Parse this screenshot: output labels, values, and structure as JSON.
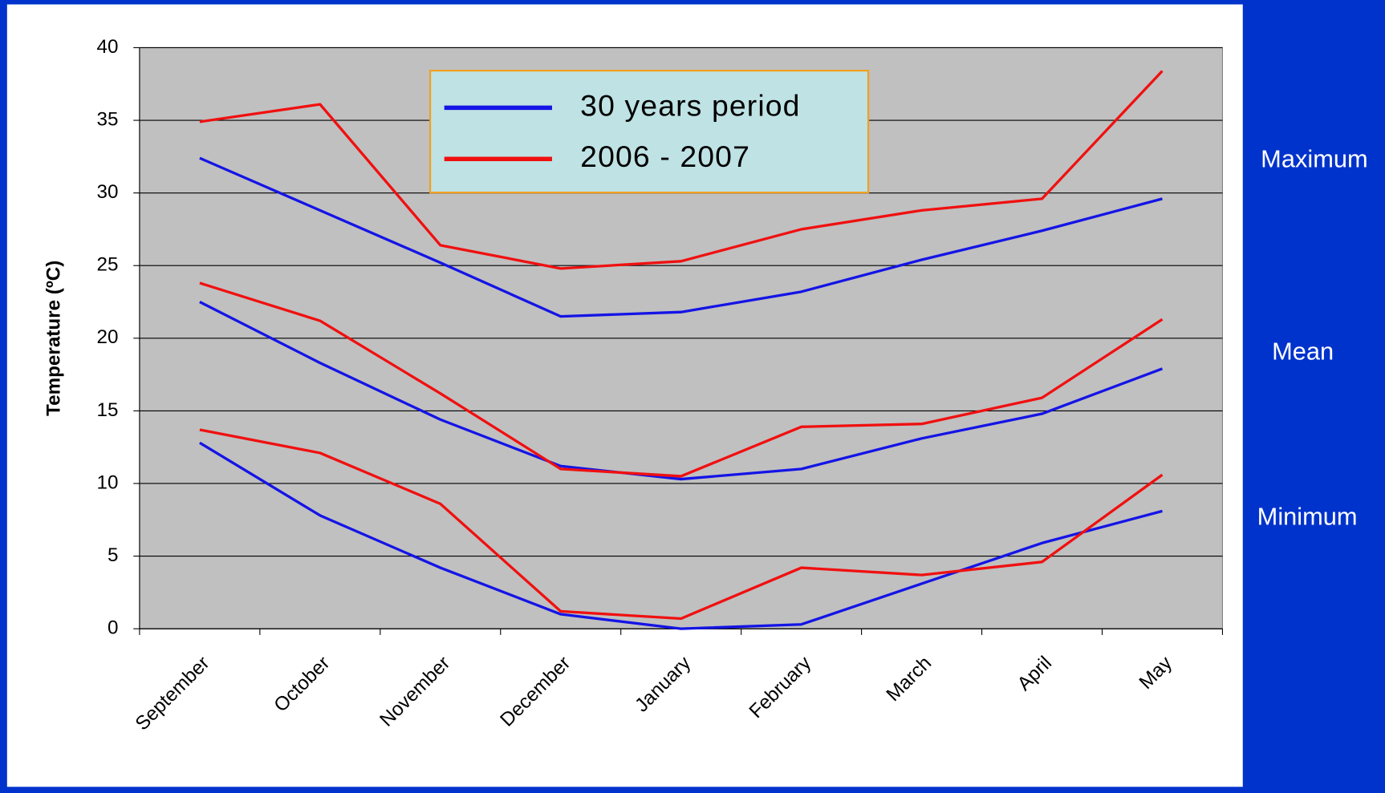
{
  "chart_data": {
    "type": "line",
    "y_axis_label": "Temperature (ºC)",
    "categories": [
      "September",
      "October",
      "November",
      "December",
      "January",
      "February",
      "March",
      "April",
      "May"
    ],
    "ylim": [
      0,
      40
    ],
    "yticks": [
      0,
      5,
      10,
      15,
      20,
      25,
      30,
      35,
      40
    ],
    "grid": true,
    "row_labels": [
      "Maximum",
      "Mean",
      "Minimum"
    ],
    "series": [
      {
        "name": "30 years period",
        "color": "#1414e6",
        "lines": [
          {
            "values": [
              32.4,
              28.8,
              25.2,
              21.5,
              21.8,
              23.2,
              25.4,
              27.4,
              29.6
            ]
          },
          {
            "values": [
              22.5,
              18.3,
              14.4,
              11.2,
              10.3,
              11.0,
              13.1,
              14.8,
              17.9
            ]
          },
          {
            "values": [
              12.8,
              7.8,
              4.2,
              1.0,
              0.0,
              0.3,
              3.1,
              5.9,
              8.1
            ]
          }
        ]
      },
      {
        "name": "2006 - 2007",
        "color": "#f01010",
        "lines": [
          {
            "values": [
              34.9,
              36.1,
              26.4,
              24.8,
              25.3,
              27.5,
              28.8,
              29.6,
              38.4
            ]
          },
          {
            "values": [
              23.8,
              21.2,
              16.2,
              11.0,
              10.5,
              13.9,
              14.1,
              15.9,
              21.3
            ]
          },
          {
            "values": [
              13.7,
              12.1,
              8.6,
              1.2,
              0.7,
              4.2,
              3.7,
              4.6,
              10.6
            ]
          }
        ]
      }
    ]
  }
}
